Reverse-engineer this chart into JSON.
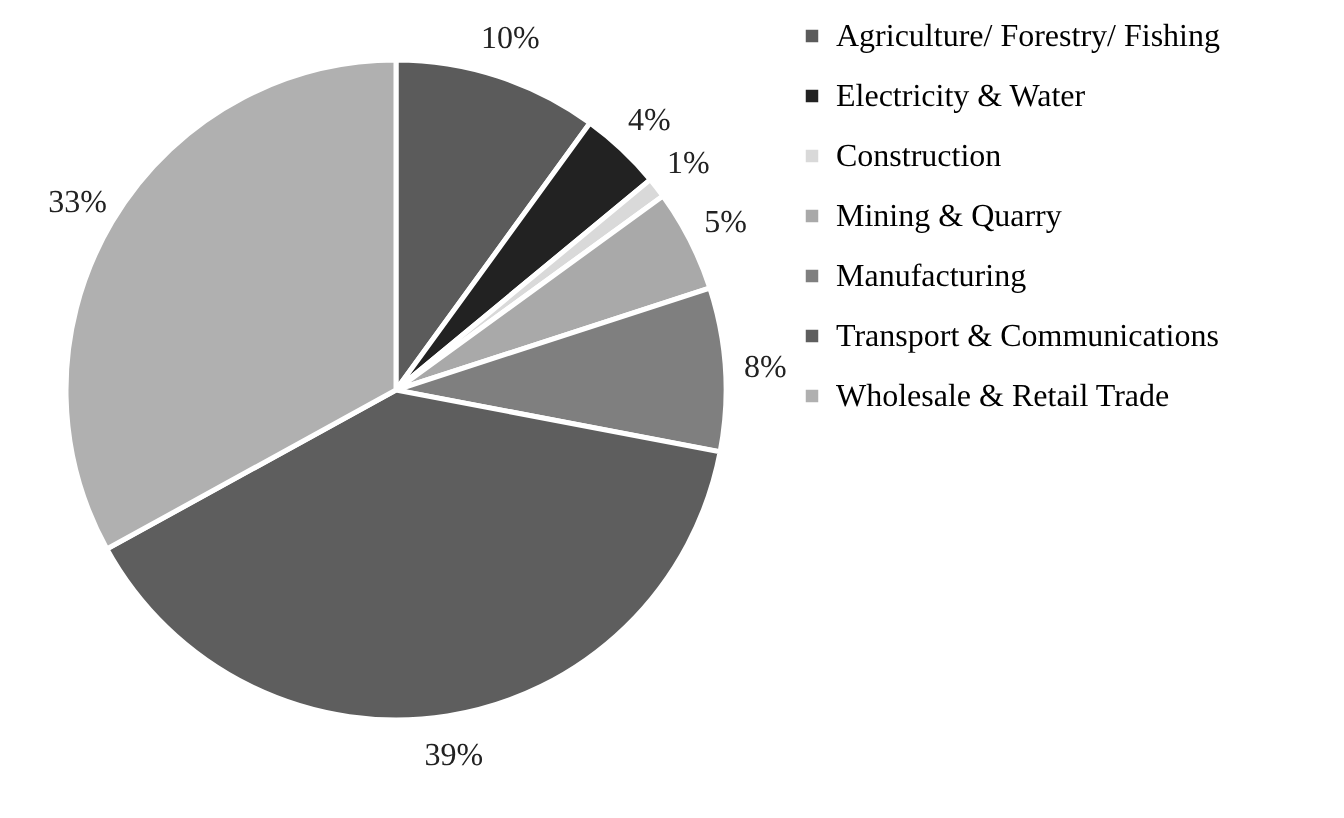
{
  "chart_data": {
    "type": "pie",
    "categories": [
      "Agriculture/ Forestry/ Fishing",
      "Electricity & Water",
      "Construction",
      "Mining & Quarry",
      "Manufacturing",
      "Transport & Communications",
      "Wholesale & Retail Trade"
    ],
    "values": [
      10,
      4,
      1,
      5,
      8,
      39,
      33
    ],
    "colors": [
      "#5b5b5b",
      "#222222",
      "#d9d9d9",
      "#a9a9a9",
      "#7f7f7f",
      "#5e5e5e",
      "#b0b0b0"
    ],
    "value_labels": [
      "10%",
      "4%",
      "1%",
      "5%",
      "8%",
      "39%",
      "33%"
    ],
    "legend": "right"
  }
}
